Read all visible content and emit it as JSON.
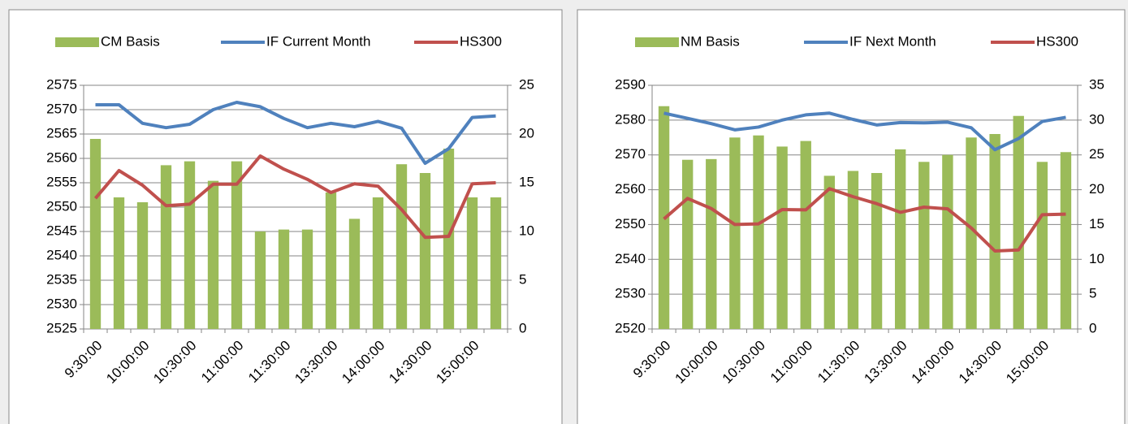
{
  "chart_data": [
    {
      "type": "bar",
      "categories": [
        "9:30:00",
        null,
        "10:00:00",
        null,
        "10:30:00",
        null,
        "11:00:00",
        null,
        "11:30:00",
        null,
        "13:30:00",
        null,
        "14:00:00",
        null,
        "14:30:00",
        null,
        "15:00:00",
        null
      ],
      "series": [
        {
          "name": "CM Basis",
          "type": "bar",
          "axis": "y2",
          "color": "#9bbb59",
          "values": [
            19.5,
            13.5,
            13,
            16.8,
            17.2,
            15.2,
            17.2,
            10,
            10.2,
            10.2,
            14,
            11.3,
            13.5,
            16.9,
            16,
            18.5,
            13.5,
            13.5
          ]
        },
        {
          "name": "IF Current Month",
          "type": "line",
          "color": "#4f81bd",
          "values": [
            2571,
            2571,
            2567.2,
            2566.3,
            2567,
            2570,
            2571.5,
            2570.6,
            2568.2,
            2566.3,
            2567.2,
            2566.5,
            2567.6,
            2566.2,
            2559,
            2562,
            2568.4,
            2568.7
          ]
        },
        {
          "name": "HS300",
          "type": "line",
          "color": "#c0504d",
          "values": [
            2551.8,
            2557.5,
            2554.5,
            2550.3,
            2550.6,
            2554.7,
            2554.7,
            2560.5,
            2557.8,
            2555.7,
            2553,
            2554.8,
            2554.3,
            2549.5,
            2543.8,
            2544,
            2554.8,
            2555
          ]
        }
      ],
      "ylim": [
        2525,
        2575
      ],
      "yticks": [
        2525,
        2530,
        2535,
        2540,
        2545,
        2550,
        2555,
        2560,
        2565,
        2570,
        2575
      ],
      "y2lim": [
        0,
        25
      ],
      "y2ticks": [
        0,
        5,
        10,
        15,
        20,
        25
      ],
      "grid": true,
      "legend": "top"
    },
    {
      "type": "bar",
      "categories": [
        "9:30:00",
        null,
        "10:00:00",
        null,
        "10:30:00",
        null,
        "11:00:00",
        null,
        "11:30:00",
        null,
        "13:30:00",
        null,
        "14:00:00",
        null,
        "14:30:00",
        null,
        "15:00:00",
        null
      ],
      "series": [
        {
          "name": "NM Basis",
          "type": "bar",
          "axis": "y2",
          "color": "#9bbb59",
          "values": [
            32,
            24.3,
            24.4,
            27.5,
            27.8,
            26.2,
            27,
            22,
            22.7,
            22.4,
            25.8,
            24,
            25,
            27.5,
            28,
            30.6,
            24,
            25.4
          ]
        },
        {
          "name": "IF Next Month",
          "type": "line",
          "color": "#4f81bd",
          "values": [
            2582,
            2580.5,
            2579,
            2577.2,
            2578,
            2580,
            2581.5,
            2582,
            2580.2,
            2578.6,
            2579.3,
            2579.2,
            2579.4,
            2577.8,
            2571.5,
            2574.7,
            2579.6,
            2580.8
          ]
        },
        {
          "name": "HS300",
          "type": "line",
          "color": "#c0504d",
          "values": [
            2551.6,
            2557.5,
            2554.6,
            2550,
            2550.2,
            2554.3,
            2554.2,
            2560.3,
            2558,
            2556,
            2553.5,
            2555,
            2554.5,
            2549,
            2542.4,
            2542.7,
            2552.8,
            2553
          ]
        }
      ],
      "ylim": [
        2520,
        2590
      ],
      "yticks": [
        2520,
        2530,
        2540,
        2550,
        2560,
        2570,
        2580,
        2590
      ],
      "y2lim": [
        0,
        35
      ],
      "y2ticks": [
        0,
        5,
        10,
        15,
        20,
        25,
        30,
        35
      ],
      "grid": true,
      "legend": "top"
    }
  ]
}
